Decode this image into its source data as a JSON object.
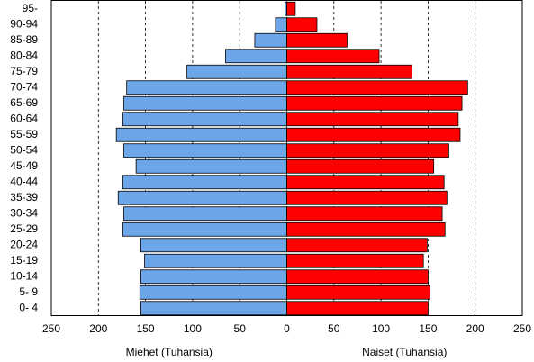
{
  "chart_data": {
    "type": "population-pyramid",
    "categories": [
      "0- 4",
      "5- 9",
      "10-14",
      "15-19",
      "20-24",
      "25-29",
      "30-34",
      "35-39",
      "40-44",
      "45-49",
      "50-54",
      "55-59",
      "60-64",
      "65-69",
      "70-74",
      "75-79",
      "80-84",
      "85-89",
      "90-94",
      "95-"
    ],
    "series": [
      {
        "name": "Miehet (Tuhansia)",
        "color": "#6ca6e8",
        "values": [
          -155,
          -156,
          -155,
          -151,
          -155,
          -174,
          -173,
          -179,
          -174,
          -160,
          -173,
          -181,
          -174,
          -173,
          -170,
          -106,
          -65,
          -34,
          -12,
          -2
        ]
      },
      {
        "name": "Naiset (Tuhansia)",
        "color": "#ff0000",
        "values": [
          150,
          152,
          150,
          145,
          149,
          168,
          165,
          170,
          167,
          156,
          172,
          184,
          182,
          186,
          192,
          133,
          98,
          64,
          32,
          9
        ]
      }
    ],
    "xlim": [
      -250,
      250
    ],
    "xticks": [
      {
        "value": -250,
        "label": "250"
      },
      {
        "value": -200,
        "label": "200"
      },
      {
        "value": -150,
        "label": "150"
      },
      {
        "value": -100,
        "label": "100"
      },
      {
        "value": -50,
        "label": "50"
      },
      0,
      50,
      100,
      150,
      200,
      250
    ],
    "grid": true
  }
}
